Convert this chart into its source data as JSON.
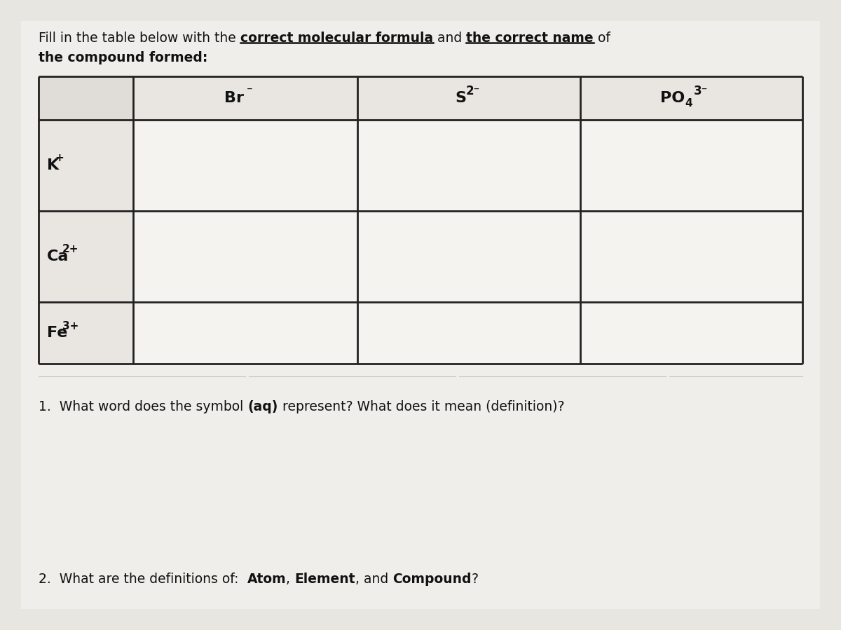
{
  "bg_color": "#e8e6e1",
  "table_bg_white": "#f5f4f1",
  "table_header_bg": "#e8e6e2",
  "table_line_color": "#222222",
  "text_color": "#111111",
  "fig_width": 12.0,
  "fig_height": 8.99,
  "title_parts": [
    [
      "Fill in the table below with the ",
      false,
      false
    ],
    [
      "correct molecular formula",
      true,
      true
    ],
    [
      " and ",
      false,
      false
    ],
    [
      "the correct name",
      true,
      true
    ],
    [
      " of",
      false,
      false
    ]
  ],
  "title_line2": "the compound formed:",
  "col_headers": [
    {
      "base": "Br",
      "sup": "⁻",
      "sub": ""
    },
    {
      "base": "S",
      "sup": "2⁻",
      "sub": ""
    },
    {
      "base": "PO",
      "sub": "4",
      "sup": "3⁻"
    }
  ],
  "row_headers": [
    {
      "base": "K",
      "sup": "+"
    },
    {
      "base": "Ca",
      "sup": "2+"
    },
    {
      "base": "Fe",
      "sup": "3+"
    }
  ],
  "q1_parts": [
    [
      "1.  What word does the symbol ",
      false
    ],
    [
      "(aq)",
      true
    ],
    [
      " represent? What does it mean (definition)?",
      false
    ]
  ],
  "q2_parts": [
    [
      "2.  What are the definitions of:  ",
      false
    ],
    [
      "Atom",
      true
    ],
    [
      ", ",
      false
    ],
    [
      "Element",
      true
    ],
    [
      ", and ",
      false
    ],
    [
      "Compound",
      true
    ],
    [
      "?",
      false
    ]
  ]
}
